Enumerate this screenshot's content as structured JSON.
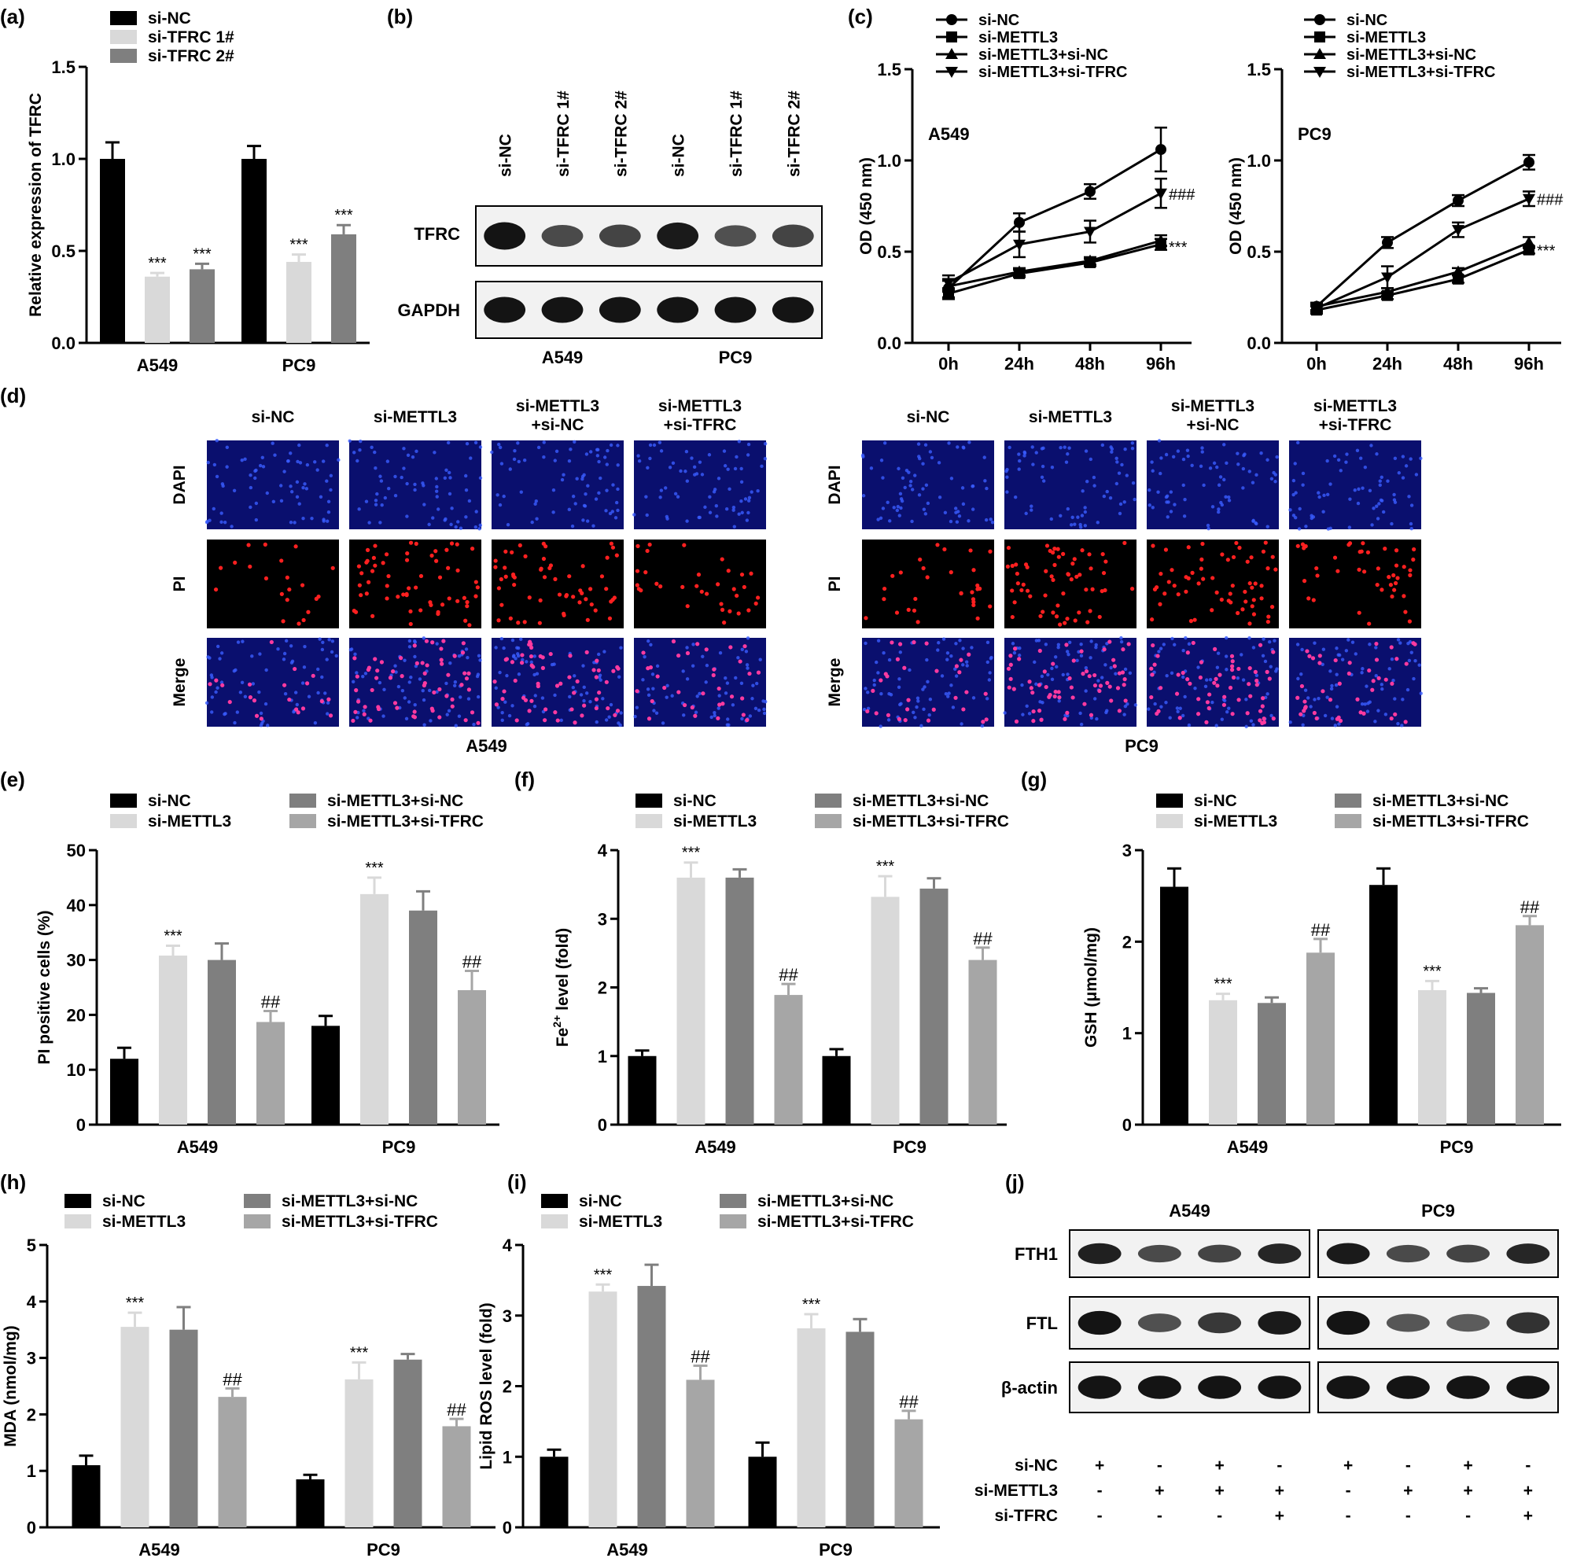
{
  "colors": {
    "black": "#000000",
    "light": "#d9d9d9",
    "dark": "#7f7f7f",
    "mid": "#a6a6a6",
    "dapi_bg": "#0a0f6e",
    "dapi_dot": "#3a5cff",
    "pi_bg": "#000000",
    "pi_dot": "#ff2020",
    "merge_bg": "#0a0f6e",
    "merge_dot": "#ff3aa0"
  },
  "panels": {
    "a": {
      "label": "(a)"
    },
    "b": {
      "label": "(b)",
      "lanes": [
        "si-NC",
        "si-TFRC 1#",
        "si-TFRC 2#",
        "si-NC",
        "si-TFRC 1#",
        "si-TFRC 2#"
      ],
      "rows": [
        "TFRC",
        "GAPDH"
      ],
      "groups": [
        "A549",
        "PC9"
      ],
      "band_intensity": {
        "TFRC": [
          1.0,
          0.55,
          0.6,
          0.95,
          0.5,
          0.6
        ],
        "GAPDH": [
          1.0,
          1.0,
          1.0,
          1.0,
          1.0,
          1.0
        ]
      }
    },
    "c": {
      "label": "(c)"
    },
    "d": {
      "label": "(d)",
      "columns": [
        "si-NC",
        "si-METTL3",
        "si-METTL3\n+si-NC",
        "si-METTL3\n+si-TFRC"
      ],
      "rows": [
        "DAPI",
        "PI",
        "Merge"
      ],
      "groups": [
        "A549",
        "PC9"
      ],
      "pi_density": {
        "A549": [
          0.35,
          1.0,
          0.95,
          0.55
        ],
        "PC9": [
          0.5,
          1.0,
          1.0,
          0.7
        ]
      }
    },
    "e": {
      "label": "(e)"
    },
    "f": {
      "label": "(f)"
    },
    "g": {
      "label": "(g)"
    },
    "h": {
      "label": "(h)"
    },
    "i": {
      "label": "(i)"
    },
    "j": {
      "label": "(j)",
      "groups": [
        "A549",
        "PC9"
      ],
      "rows": [
        "FTH1",
        "FTL",
        "β-actin"
      ],
      "band_intensity": {
        "FTH1": [
          0.9,
          0.55,
          0.6,
          0.85,
          0.95,
          0.55,
          0.6,
          0.85
        ],
        "FTL": [
          1.0,
          0.5,
          0.7,
          0.95,
          1.0,
          0.45,
          0.4,
          0.75
        ],
        "β-actin": [
          1.0,
          1.0,
          1.0,
          1.0,
          1.0,
          1.0,
          1.0,
          1.0
        ]
      },
      "treatments": [
        {
          "name": "si-NC",
          "signs": [
            "+",
            "-",
            "+",
            "-",
            "+",
            "-",
            "+",
            "-"
          ]
        },
        {
          "name": "si-METTL3",
          "signs": [
            "-",
            "+",
            "+",
            "+",
            "-",
            "+",
            "+",
            "+"
          ]
        },
        {
          "name": "si-TFRC",
          "signs": [
            "-",
            "-",
            "-",
            "+",
            "-",
            "-",
            "-",
            "+"
          ]
        }
      ]
    }
  },
  "chart_data": [
    {
      "id": "a",
      "type": "bar",
      "categories": [
        "A549",
        "PC9"
      ],
      "ylabel": "Relative expression of TFRC",
      "ylim": [
        0,
        1.5
      ],
      "yticks": [
        "0.0",
        "0.5",
        "1.0",
        "1.5"
      ],
      "legend": "top-left",
      "series": [
        {
          "name": "si-NC",
          "color": "black",
          "values": [
            1.0,
            1.0
          ],
          "err": [
            0.09,
            0.07
          ],
          "marks": [
            "",
            ""
          ]
        },
        {
          "name": "si-TFRC 1#",
          "color": "light",
          "values": [
            0.36,
            0.44
          ],
          "err": [
            0.02,
            0.04
          ],
          "marks": [
            "***",
            "***"
          ]
        },
        {
          "name": "si-TFRC 2#",
          "color": "dark",
          "values": [
            0.4,
            0.59
          ],
          "err": [
            0.03,
            0.05
          ],
          "marks": [
            "***",
            "***"
          ]
        }
      ]
    },
    {
      "id": "c1",
      "type": "line",
      "title": "A549",
      "x": [
        "0h",
        "24h",
        "48h",
        "96h"
      ],
      "ylabel": "OD (450 nm)",
      "ylim": [
        0,
        1.5
      ],
      "yticks": [
        "0.0",
        "0.5",
        "1.0",
        "1.5"
      ],
      "legend": "top",
      "series": [
        {
          "name": "si-NC",
          "marker": "circle",
          "values": [
            0.3,
            0.66,
            0.83,
            1.06
          ],
          "err": [
            0.05,
            0.05,
            0.04,
            0.12
          ]
        },
        {
          "name": "si-METTL3",
          "marker": "square",
          "values": [
            0.27,
            0.38,
            0.44,
            0.54
          ],
          "err": [
            0.03,
            0.02,
            0.02,
            0.03
          ]
        },
        {
          "name": "si-METTL3+si-NC",
          "marker": "triangle-up",
          "values": [
            0.31,
            0.39,
            0.45,
            0.56
          ],
          "err": [
            0.03,
            0.02,
            0.02,
            0.03
          ]
        },
        {
          "name": "si-METTL3+si-TFRC",
          "marker": "triangle-down",
          "values": [
            0.33,
            0.54,
            0.61,
            0.82
          ],
          "err": [
            0.04,
            0.07,
            0.06,
            0.08
          ]
        }
      ],
      "annotations": [
        {
          "text": "###",
          "x": "96h",
          "y": 0.82
        },
        {
          "text": "***",
          "x": "96h",
          "y": 0.53
        }
      ]
    },
    {
      "id": "c2",
      "type": "line",
      "title": "PC9",
      "x": [
        "0h",
        "24h",
        "48h",
        "96h"
      ],
      "ylabel": "OD (450 nm)",
      "ylim": [
        0,
        1.5
      ],
      "yticks": [
        "0.0",
        "0.5",
        "1.0",
        "1.5"
      ],
      "legend": "top",
      "series": [
        {
          "name": "si-NC",
          "marker": "circle",
          "values": [
            0.2,
            0.55,
            0.78,
            0.99
          ],
          "err": [
            0.02,
            0.03,
            0.03,
            0.04
          ]
        },
        {
          "name": "si-METTL3",
          "marker": "square",
          "values": [
            0.18,
            0.26,
            0.35,
            0.51
          ],
          "err": [
            0.02,
            0.02,
            0.02,
            0.02
          ]
        },
        {
          "name": "si-METTL3+si-NC",
          "marker": "triangle-up",
          "values": [
            0.2,
            0.28,
            0.39,
            0.55
          ],
          "err": [
            0.02,
            0.02,
            0.02,
            0.03
          ]
        },
        {
          "name": "si-METTL3+si-TFRC",
          "marker": "triangle-down",
          "values": [
            0.19,
            0.36,
            0.62,
            0.79
          ],
          "err": [
            0.02,
            0.06,
            0.04,
            0.04
          ]
        }
      ],
      "annotations": [
        {
          "text": "###",
          "x": "96h",
          "y": 0.79
        },
        {
          "text": "***",
          "x": "96h",
          "y": 0.51
        }
      ]
    },
    {
      "id": "e",
      "type": "bar",
      "categories": [
        "A549",
        "PC9"
      ],
      "ylabel": "PI positive cells (%)",
      "ylim": [
        0,
        50
      ],
      "yticks": [
        "0",
        "10",
        "20",
        "30",
        "40",
        "50"
      ],
      "legend": "top",
      "series": [
        {
          "name": "si-NC",
          "color": "black",
          "values": [
            12,
            18
          ],
          "err": [
            2,
            1.8
          ],
          "marks": [
            "",
            ""
          ]
        },
        {
          "name": "si-METTL3",
          "color": "light",
          "values": [
            30.8,
            42
          ],
          "err": [
            1.8,
            3
          ],
          "marks": [
            "***",
            "***"
          ]
        },
        {
          "name": "si-METTL3+si-NC",
          "color": "dark",
          "values": [
            30,
            39
          ],
          "err": [
            3,
            3.5
          ],
          "marks": [
            "",
            ""
          ]
        },
        {
          "name": "si-METTL3+si-TFRC",
          "color": "mid",
          "values": [
            18.7,
            24.5
          ],
          "err": [
            2,
            3.5
          ],
          "marks": [
            "##",
            "##"
          ]
        }
      ]
    },
    {
      "id": "f",
      "type": "bar",
      "categories": [
        "A549",
        "PC9"
      ],
      "ylabel": "Fe2+ level (fold)",
      "ylim": [
        0,
        4
      ],
      "yticks": [
        "0",
        "1",
        "2",
        "3",
        "4"
      ],
      "legend": "top",
      "series": [
        {
          "name": "si-NC",
          "color": "black",
          "values": [
            1.0,
            1.0
          ],
          "err": [
            0.08,
            0.1
          ],
          "marks": [
            "",
            ""
          ]
        },
        {
          "name": "si-METTL3",
          "color": "light",
          "values": [
            3.6,
            3.32
          ],
          "err": [
            0.22,
            0.3
          ],
          "marks": [
            "***",
            "***"
          ]
        },
        {
          "name": "si-METTL3+si-NC",
          "color": "dark",
          "values": [
            3.6,
            3.44
          ],
          "err": [
            0.12,
            0.15
          ],
          "marks": [
            "",
            ""
          ]
        },
        {
          "name": "si-METTL3+si-TFRC",
          "color": "mid",
          "values": [
            1.89,
            2.4
          ],
          "err": [
            0.16,
            0.18
          ],
          "marks": [
            "##",
            "##"
          ]
        }
      ]
    },
    {
      "id": "g",
      "type": "bar",
      "categories": [
        "A549",
        "PC9"
      ],
      "ylabel": "GSH (μmol/mg)",
      "ylim": [
        0,
        3
      ],
      "yticks": [
        "0",
        "1",
        "2",
        "3"
      ],
      "legend": "top",
      "series": [
        {
          "name": "si-NC",
          "color": "black",
          "values": [
            2.6,
            2.62
          ],
          "err": [
            0.2,
            0.18
          ],
          "marks": [
            "",
            ""
          ]
        },
        {
          "name": "si-METTL3",
          "color": "light",
          "values": [
            1.36,
            1.47
          ],
          "err": [
            0.07,
            0.1
          ],
          "marks": [
            "***",
            "***"
          ]
        },
        {
          "name": "si-METTL3+si-NC",
          "color": "dark",
          "values": [
            1.33,
            1.44
          ],
          "err": [
            0.06,
            0.05
          ],
          "marks": [
            "",
            ""
          ]
        },
        {
          "name": "si-METTL3+si-TFRC",
          "color": "mid",
          "values": [
            1.88,
            2.18
          ],
          "err": [
            0.15,
            0.1
          ],
          "marks": [
            "##",
            "##"
          ]
        }
      ]
    },
    {
      "id": "h",
      "type": "bar",
      "categories": [
        "A549",
        "PC9"
      ],
      "ylabel": "MDA (nmol/mg)",
      "ylim": [
        0,
        5
      ],
      "yticks": [
        "0",
        "1",
        "2",
        "3",
        "4",
        "5"
      ],
      "legend": "top",
      "series": [
        {
          "name": "si-NC",
          "color": "black",
          "values": [
            1.1,
            0.85
          ],
          "err": [
            0.17,
            0.08
          ],
          "marks": [
            "",
            ""
          ]
        },
        {
          "name": "si-METTL3",
          "color": "light",
          "values": [
            3.55,
            2.62
          ],
          "err": [
            0.25,
            0.3
          ],
          "marks": [
            "***",
            "***"
          ]
        },
        {
          "name": "si-METTL3+si-NC",
          "color": "dark",
          "values": [
            3.5,
            2.97
          ],
          "err": [
            0.4,
            0.1
          ],
          "marks": [
            "",
            ""
          ]
        },
        {
          "name": "si-METTL3+si-TFRC",
          "color": "mid",
          "values": [
            2.31,
            1.79
          ],
          "err": [
            0.15,
            0.13
          ],
          "marks": [
            "##",
            "##"
          ]
        }
      ]
    },
    {
      "id": "i",
      "type": "bar",
      "categories": [
        "A549",
        "PC9"
      ],
      "ylabel": "Lipid ROS level (fold)",
      "ylim": [
        0,
        4
      ],
      "yticks": [
        "0",
        "1",
        "2",
        "3",
        "4"
      ],
      "legend": "top",
      "series": [
        {
          "name": "si-NC",
          "color": "black",
          "values": [
            1.0,
            1.0
          ],
          "err": [
            0.1,
            0.2
          ],
          "marks": [
            "",
            ""
          ]
        },
        {
          "name": "si-METTL3",
          "color": "light",
          "values": [
            3.34,
            2.82
          ],
          "err": [
            0.1,
            0.2
          ],
          "marks": [
            "***",
            "***"
          ]
        },
        {
          "name": "si-METTL3+si-NC",
          "color": "dark",
          "values": [
            3.42,
            2.77
          ],
          "err": [
            0.3,
            0.18
          ],
          "marks": [
            "",
            ""
          ]
        },
        {
          "name": "si-METTL3+si-TFRC",
          "color": "mid",
          "values": [
            2.09,
            1.53
          ],
          "err": [
            0.2,
            0.12
          ],
          "marks": [
            "##",
            "##"
          ]
        }
      ]
    }
  ]
}
